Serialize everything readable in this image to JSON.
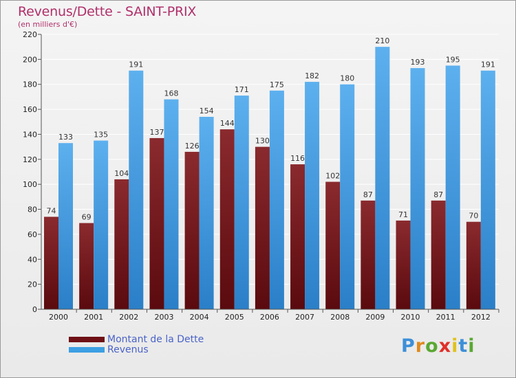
{
  "title": "Revenus/Dette - SAINT-PRIX",
  "subtitle": "(en milliers d'€)",
  "colors": {
    "dette": "#7b1a1e",
    "revenus": "#3d9fe3",
    "title": "#b0306a",
    "legend_text": "#4a63c8"
  },
  "chart_data": {
    "type": "bar",
    "title": "Revenus/Dette - SAINT-PRIX",
    "ylabel": "(en milliers d'€)",
    "ylim": [
      0,
      220
    ],
    "yticks": [
      0,
      20,
      40,
      60,
      80,
      100,
      120,
      140,
      160,
      180,
      200,
      220
    ],
    "grid": true,
    "legend": "bottom-left",
    "categories": [
      "2000",
      "2001",
      "2002",
      "2003",
      "2004",
      "2005",
      "2006",
      "2007",
      "2008",
      "2009",
      "2010",
      "2011",
      "2012"
    ],
    "series": [
      {
        "name": "Montant de la Dette",
        "values": [
          74,
          69,
          104,
          137,
          126,
          144,
          130,
          116,
          102,
          87,
          71,
          87,
          70
        ]
      },
      {
        "name": "Revenus",
        "values": [
          133,
          135,
          191,
          168,
          154,
          171,
          175,
          182,
          180,
          210,
          193,
          195,
          191
        ]
      }
    ]
  },
  "legend": {
    "dette_label": "Montant de la Dette",
    "revenus_label": "Revenus"
  },
  "logo": {
    "text": "Proxiti"
  }
}
